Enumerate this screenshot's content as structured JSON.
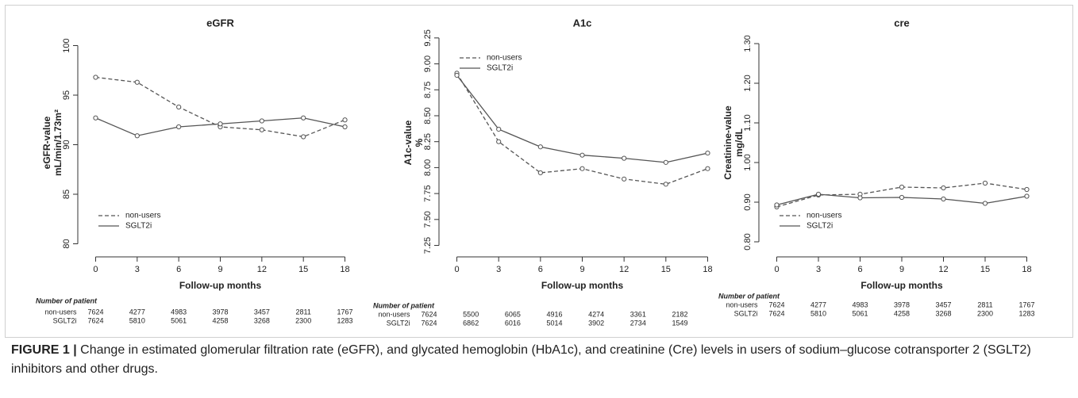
{
  "chart_data": [
    {
      "type": "line",
      "title": "eGFR",
      "ylabel": [
        "eGFR-value",
        "mL/min/1.73m²"
      ],
      "xlabel": "Follow-up months",
      "x": [
        0,
        3,
        6,
        9,
        12,
        15,
        18
      ],
      "xlim": [
        -0.6,
        18.6
      ],
      "xticks": [
        0,
        3,
        6,
        9,
        12,
        15,
        18
      ],
      "ylim": [
        79,
        101.4
      ],
      "yticks": [
        80,
        85,
        90,
        95,
        100
      ],
      "legend": "bottom-left",
      "series": [
        {
          "name": "non-users",
          "color": "#555555",
          "linestyle": "dashed",
          "values": [
            96.8,
            96.3,
            93.8,
            91.8,
            91.5,
            90.8,
            92.5
          ]
        },
        {
          "name": "SGLT2i",
          "color": "#555555",
          "linestyle": "solid",
          "values": [
            92.7,
            90.9,
            91.8,
            92.1,
            92.4,
            92.7,
            91.8
          ]
        }
      ],
      "patients": {
        "title": "Number of patient",
        "rows": [
          {
            "name": "non-users",
            "values": [
              7624,
              4277,
              4983,
              3978,
              3457,
              2811,
              1767
            ]
          },
          {
            "name": "SGLT2i",
            "values": [
              7624,
              5810,
              5061,
              4258,
              3268,
              2300,
              1283
            ]
          }
        ]
      }
    },
    {
      "type": "line",
      "title": "A1c",
      "ylabel": [
        "A1c-value",
        "%"
      ],
      "xlabel": "Follow-up months",
      "x": [
        0,
        3,
        6,
        9,
        12,
        15,
        18
      ],
      "xlim": [
        -0.6,
        18.6
      ],
      "xticks": [
        0,
        3,
        6,
        9,
        12,
        15,
        18
      ],
      "ylim": [
        7.17,
        9.31
      ],
      "yticks": [
        7.25,
        {
          "value": 7.5,
          "label": "7.50"
        },
        7.75,
        {
          "value": 8,
          "label": "8.00"
        },
        8.25,
        {
          "value": 8.5,
          "label": "8.50"
        },
        8.75,
        {
          "value": 9,
          "label": "9.00"
        },
        9.25
      ],
      "legend": "top-left",
      "series": [
        {
          "name": "non-users",
          "color": "#555555",
          "linestyle": "dashed",
          "values": [
            8.91,
            8.25,
            7.95,
            7.99,
            7.89,
            7.84,
            7.99
          ]
        },
        {
          "name": "SGLT2i",
          "color": "#555555",
          "linestyle": "solid",
          "values": [
            8.89,
            8.37,
            8.2,
            8.12,
            8.09,
            8.05,
            8.14
          ]
        }
      ],
      "patients": {
        "title": "Number of patient",
        "rows": [
          {
            "name": "non-users",
            "values": [
              7624,
              5500,
              6065,
              4916,
              4274,
              3361,
              2182
            ]
          },
          {
            "name": "SGLT2i",
            "values": [
              7624,
              6862,
              6016,
              5014,
              3902,
              2734,
              1549
            ]
          }
        ]
      }
    },
    {
      "type": "line",
      "title": "cre",
      "ylabel": [
        "Creatinine-value",
        "mg/dL"
      ],
      "xlabel": "Follow-up months",
      "x": [
        0,
        3,
        6,
        9,
        12,
        15,
        18
      ],
      "xlim": [
        -0.6,
        18.6
      ],
      "xticks": [
        0,
        3,
        6,
        9,
        12,
        15,
        18
      ],
      "ylim": [
        0.77,
        1.33
      ],
      "yticks": [
        {
          "value": 0.8,
          "label": "0.80"
        },
        {
          "value": 0.9,
          "label": "0.90"
        },
        {
          "value": 1,
          "label": "1.00"
        },
        {
          "value": 1.1,
          "label": "1.10"
        },
        {
          "value": 1.2,
          "label": "1.20"
        },
        {
          "value": 1.3,
          "label": "1.30"
        }
      ],
      "legend": "bottom-left",
      "series": [
        {
          "name": "non-users",
          "color": "#555555",
          "linestyle": "dashed",
          "values": [
            0.888,
            0.918,
            0.92,
            0.938,
            0.936,
            0.948,
            0.932
          ]
        },
        {
          "name": "SGLT2i",
          "color": "#555555",
          "linestyle": "solid",
          "values": [
            0.893,
            0.92,
            0.911,
            0.912,
            0.908,
            0.897,
            0.915
          ]
        }
      ],
      "patients": {
        "title": "Number of patient",
        "rows": [
          {
            "name": "non-users",
            "values": [
              7624,
              4277,
              4983,
              3978,
              3457,
              2811,
              1767
            ]
          },
          {
            "name": "SGLT2i",
            "values": [
              7624,
              5810,
              5061,
              4258,
              3268,
              2300,
              1283
            ]
          }
        ]
      }
    }
  ],
  "caption": {
    "label": "FIGURE 1 |",
    "text": "Change in estimated glomerular filtration rate (eGFR), and glycated hemoglobin (HbA1c), and creatinine (Cre) levels in users of sodium–glucose cotransporter 2 (SGLT2) inhibitors and other drugs."
  }
}
